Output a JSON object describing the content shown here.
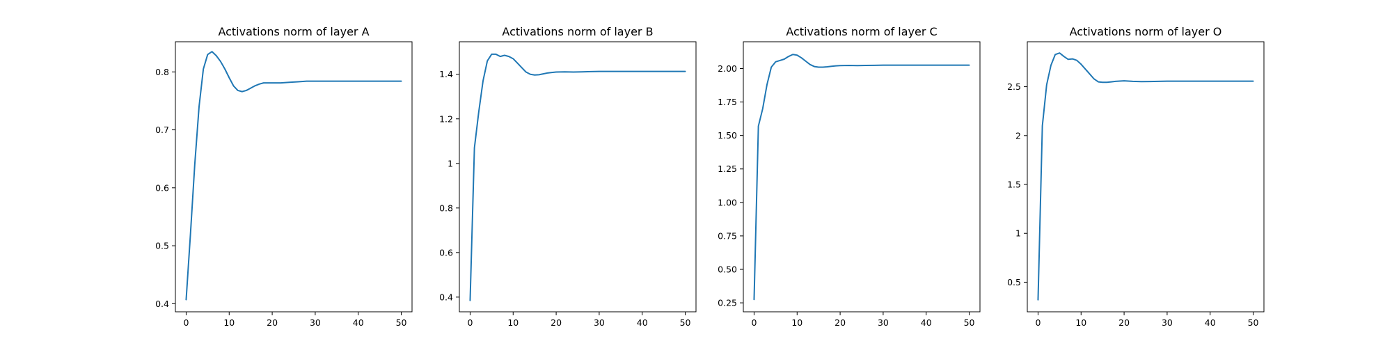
{
  "colors": {
    "line": "#1f77b4",
    "axes": "#000000",
    "background": "#ffffff"
  },
  "chart_data": [
    {
      "type": "line",
      "title": "Activations norm of layer A",
      "xlabel": "",
      "ylabel": "",
      "grid": false,
      "xlim": [
        -2.5,
        52.5
      ],
      "ylim": [
        0.386,
        0.852
      ],
      "xticks": [
        0,
        10,
        20,
        30,
        40,
        50
      ],
      "yticks": [
        0.4,
        0.5,
        0.6,
        0.7,
        0.8
      ],
      "series": [
        {
          "x": [
            0,
            1,
            2,
            3,
            4,
            5,
            6,
            7,
            8,
            9,
            10,
            11,
            12,
            13,
            14,
            15,
            16,
            17,
            18,
            19,
            20,
            22,
            24,
            26,
            28,
            30,
            35,
            40,
            45,
            50
          ],
          "y": [
            0.407,
            0.52,
            0.64,
            0.74,
            0.805,
            0.83,
            0.835,
            0.828,
            0.818,
            0.805,
            0.79,
            0.776,
            0.768,
            0.766,
            0.768,
            0.772,
            0.776,
            0.779,
            0.781,
            0.781,
            0.781,
            0.781,
            0.782,
            0.783,
            0.784,
            0.784,
            0.784,
            0.784,
            0.784,
            0.784
          ]
        }
      ]
    },
    {
      "type": "line",
      "title": "Activations norm of layer B",
      "xlabel": "",
      "ylabel": "",
      "grid": false,
      "xlim": [
        -2.5,
        52.5
      ],
      "ylim": [
        0.334,
        1.546
      ],
      "xticks": [
        0,
        10,
        20,
        30,
        40,
        50
      ],
      "yticks": [
        0.4,
        0.6,
        0.8,
        1.0,
        1.2,
        1.4
      ],
      "series": [
        {
          "x": [
            0,
            1,
            2,
            3,
            4,
            5,
            6,
            7,
            8,
            9,
            10,
            11,
            12,
            13,
            14,
            15,
            16,
            17,
            18,
            19,
            20,
            22,
            24,
            26,
            28,
            30,
            35,
            40,
            45,
            50
          ],
          "y": [
            0.385,
            1.07,
            1.23,
            1.37,
            1.46,
            1.49,
            1.49,
            1.48,
            1.485,
            1.48,
            1.47,
            1.45,
            1.43,
            1.41,
            1.4,
            1.397,
            1.398,
            1.402,
            1.406,
            1.408,
            1.41,
            1.411,
            1.41,
            1.411,
            1.412,
            1.413,
            1.413,
            1.413,
            1.413,
            1.413
          ]
        }
      ]
    },
    {
      "type": "line",
      "title": "Activations norm of layer C",
      "xlabel": "",
      "ylabel": "",
      "grid": false,
      "xlim": [
        -2.5,
        52.5
      ],
      "ylim": [
        0.183,
        2.2
      ],
      "xticks": [
        0,
        10,
        20,
        30,
        40,
        50
      ],
      "yticks": [
        0.25,
        0.5,
        0.75,
        1.0,
        1.25,
        1.5,
        1.75,
        2.0
      ],
      "ytick_labels": [
        "0.25",
        "0.50",
        "0.75",
        "1.00",
        "1.25",
        "1.50",
        "1.75",
        "2.00"
      ],
      "series": [
        {
          "x": [
            0,
            1,
            2,
            3,
            4,
            5,
            6,
            7,
            8,
            9,
            10,
            11,
            12,
            13,
            14,
            15,
            16,
            17,
            18,
            19,
            20,
            22,
            24,
            26,
            28,
            30,
            35,
            40,
            45,
            50
          ],
          "y": [
            0.275,
            1.57,
            1.7,
            1.88,
            2.01,
            2.05,
            2.06,
            2.07,
            2.09,
            2.105,
            2.1,
            2.08,
            2.055,
            2.03,
            2.015,
            2.01,
            2.01,
            2.013,
            2.017,
            2.02,
            2.022,
            2.023,
            2.022,
            2.023,
            2.024,
            2.025,
            2.025,
            2.025,
            2.025,
            2.025
          ]
        }
      ]
    },
    {
      "type": "line",
      "title": "Activations norm of layer O",
      "xlabel": "",
      "ylabel": "",
      "grid": false,
      "xlim": [
        -2.5,
        52.5
      ],
      "ylim": [
        0.197,
        2.96
      ],
      "xticks": [
        0,
        10,
        20,
        30,
        40,
        50
      ],
      "yticks": [
        0.5,
        1.0,
        1.5,
        2.0,
        2.5
      ],
      "series": [
        {
          "x": [
            0,
            1,
            2,
            3,
            4,
            5,
            6,
            7,
            8,
            9,
            10,
            11,
            12,
            13,
            14,
            15,
            16,
            17,
            18,
            19,
            20,
            22,
            24,
            26,
            28,
            30,
            35,
            40,
            45,
            50
          ],
          "y": [
            0.32,
            2.1,
            2.52,
            2.72,
            2.83,
            2.845,
            2.81,
            2.78,
            2.785,
            2.77,
            2.73,
            2.68,
            2.63,
            2.58,
            2.55,
            2.545,
            2.545,
            2.55,
            2.555,
            2.558,
            2.56,
            2.555,
            2.552,
            2.553,
            2.555,
            2.557,
            2.557,
            2.557,
            2.557,
            2.557
          ]
        }
      ]
    }
  ]
}
